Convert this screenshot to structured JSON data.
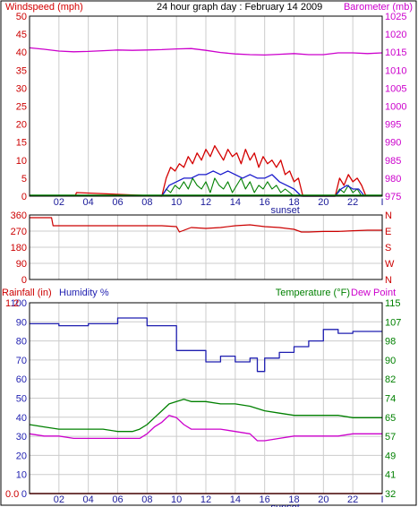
{
  "colors": {
    "wind": "#d40000",
    "gust": "#d40000",
    "avg_wind": "#1a1acc",
    "gust_bars": "#008000",
    "baro": "#cc00cc",
    "winddir": "#cc0000",
    "rain": "#cc0000",
    "humidity": "#1f1fb0",
    "temp": "#008000",
    "dewpoint": "#cc00cc",
    "grid": "#cccccc"
  },
  "chart_data": [
    {
      "type": "line",
      "name_key": "wind_baro",
      "title": "24 hour graph day : February 14 2009",
      "left_axis_label": "Windspeed (mph)",
      "right_axis_label": "Barometer (mb)",
      "left_ticks": [
        "0",
        "5",
        "10",
        "15",
        "20",
        "25",
        "30",
        "35",
        "40",
        "45",
        "50"
      ],
      "right_ticks": [
        "975",
        "980",
        "985",
        "990",
        "995",
        "1000",
        "1005",
        "1010",
        "1015",
        "1020",
        "1025"
      ],
      "x_ticks": [
        "02",
        "04",
        "06",
        "08",
        "10",
        "12",
        "14",
        "16",
        "18",
        "20",
        "22",
        "I"
      ],
      "sunset_label": "sunset",
      "ylim_left": [
        0,
        50
      ],
      "ylim_right": [
        975,
        1025
      ],
      "barometer": {
        "x": [
          0,
          1,
          2,
          3,
          4,
          5,
          6,
          7,
          8,
          9,
          10,
          11,
          12,
          13,
          14,
          15,
          16,
          17,
          18,
          19,
          20,
          21,
          22,
          23,
          24
        ],
        "values": [
          1016.2,
          1015.8,
          1015.3,
          1015.1,
          1015.2,
          1015.4,
          1015.6,
          1015.5,
          1015.6,
          1015.7,
          1015.9,
          1016.0,
          1015.5,
          1014.9,
          1014.5,
          1014.3,
          1014.2,
          1014.4,
          1014.6,
          1014.3,
          1014.3,
          1014.8,
          1014.8,
          1014.6,
          1014.8
        ]
      },
      "wind_gust": {
        "x": [
          3.1,
          3.2,
          9.0,
          9.3,
          9.6,
          9.9,
          10.2,
          10.5,
          10.8,
          11.1,
          11.4,
          11.7,
          12.0,
          12.3,
          12.6,
          12.9,
          13.2,
          13.5,
          13.8,
          14.1,
          14.4,
          14.7,
          15.0,
          15.3,
          15.6,
          15.9,
          16.2,
          16.5,
          16.8,
          17.1,
          17.4,
          17.7,
          18.0,
          18.3,
          18.6,
          20.8,
          21.1,
          21.4,
          21.7,
          22.0,
          22.3,
          22.6,
          22.9
        ],
        "values": [
          0,
          1,
          0,
          5,
          8,
          7,
          9,
          8,
          11,
          9,
          12,
          10,
          13,
          11,
          14,
          12,
          10,
          13,
          11,
          12,
          9,
          13,
          10,
          12,
          8,
          11,
          9,
          10,
          8,
          10,
          6,
          7,
          4,
          5,
          0,
          0,
          5,
          3,
          6,
          4,
          5,
          3,
          0
        ]
      },
      "wind_avg": {
        "x": [
          9.0,
          9.5,
          10.0,
          10.5,
          11.0,
          11.5,
          12.0,
          12.5,
          13.0,
          13.5,
          14.0,
          14.5,
          15.0,
          15.5,
          16.0,
          16.5,
          17.0,
          17.5,
          18.0,
          18.5,
          20.8,
          21.2,
          21.6,
          22.0,
          22.4,
          22.8
        ],
        "values": [
          0,
          3,
          4,
          5,
          5,
          6,
          6,
          7,
          6,
          7,
          6,
          5,
          6,
          5,
          5,
          6,
          4,
          3,
          2,
          0,
          0,
          2,
          3,
          2,
          2,
          0
        ]
      },
      "wind_speed": {
        "x": [
          9.0,
          9.3,
          9.6,
          9.9,
          10.2,
          10.5,
          10.8,
          11.1,
          11.4,
          11.7,
          12.0,
          12.3,
          12.6,
          12.9,
          13.2,
          13.5,
          13.8,
          14.1,
          14.4,
          14.7,
          15.0,
          15.3,
          15.6,
          15.9,
          16.2,
          16.5,
          16.8,
          17.1,
          17.4,
          17.7,
          18.0,
          20.8,
          21.1,
          21.4,
          21.7,
          22.0,
          22.3,
          22.6
        ],
        "values": [
          0,
          2,
          1,
          3,
          2,
          4,
          2,
          5,
          3,
          2,
          4,
          1,
          5,
          3,
          2,
          4,
          1,
          3,
          5,
          2,
          4,
          1,
          3,
          2,
          4,
          2,
          3,
          1,
          2,
          1,
          0,
          0,
          2,
          1,
          3,
          1,
          2,
          0
        ]
      }
    },
    {
      "type": "line",
      "name_key": "wind_dir",
      "left_ticks": [
        "0",
        "90",
        "180",
        "270",
        "360"
      ],
      "right_ticks": [
        "N",
        "W",
        "S",
        "E",
        "N"
      ],
      "ylim": [
        0,
        360
      ],
      "x": [
        0,
        1.5,
        1.6,
        2,
        4,
        6,
        8,
        9,
        10,
        10.2,
        11,
        12,
        13,
        14,
        15,
        16,
        17,
        18,
        18.5,
        19,
        20,
        21,
        22,
        23,
        24
      ],
      "values": [
        345,
        345,
        300,
        300,
        300,
        300,
        300,
        300,
        295,
        265,
        290,
        285,
        290,
        300,
        305,
        295,
        290,
        280,
        265,
        265,
        268,
        268,
        272,
        275,
        275
      ]
    },
    {
      "type": "line",
      "name_key": "temp_hum",
      "left_axis_label_rain": "Rainfall (in)",
      "left_axis_label_hum": "Humidity %",
      "right_axis_label_temp": "Temperature (°F)",
      "right_axis_label_dew": "Dew Point",
      "humidity_ticks": [
        "0",
        "10",
        "20",
        "30",
        "40",
        "50",
        "60",
        "70",
        "80",
        "90",
        "100"
      ],
      "rain_ticks": [
        "0.0",
        "0.1",
        "0.2",
        "0.3",
        "0.4",
        "0.5",
        "0.6",
        "0.7",
        "0.8",
        "0.9",
        "1.0",
        "1.1",
        "1.2"
      ],
      "rain_tick_labels_shown": [
        "0.0",
        "1.2"
      ],
      "right_ticks": [
        "32",
        "41",
        "49",
        "57",
        "65",
        "74",
        "82",
        "90",
        "98",
        "107",
        "115"
      ],
      "x_ticks": [
        "02",
        "04",
        "06",
        "08",
        "10",
        "12",
        "14",
        "16",
        "18",
        "20",
        "22",
        "I"
      ],
      "sunset_label": "sunset",
      "ylim_humidity": [
        0,
        100
      ],
      "ylim_temp": [
        32,
        115
      ],
      "humidity": {
        "x": [
          0,
          2,
          2.0,
          4,
          4.0,
          6,
          6.0,
          8,
          8.0,
          10,
          10.0,
          12,
          12.0,
          13,
          13.0,
          14,
          14.0,
          15,
          15.0,
          15.5,
          15.5,
          16,
          16.0,
          17,
          17.0,
          18,
          18.0,
          19,
          19.0,
          20,
          20.0,
          21,
          21.0,
          22,
          22.0,
          24
        ],
        "values": [
          89,
          89,
          88,
          88,
          89,
          89,
          92,
          92,
          88,
          88,
          75,
          75,
          69,
          69,
          72,
          72,
          69,
          69,
          71,
          71,
          64,
          64,
          71,
          71,
          74,
          74,
          77,
          77,
          80,
          80,
          86,
          86,
          84,
          84,
          85,
          85
        ]
      },
      "temperature": {
        "x": [
          0,
          1,
          2,
          3,
          4,
          5,
          6,
          7,
          7.5,
          8,
          8.5,
          9,
          9.5,
          10,
          10.5,
          11,
          12,
          13,
          14,
          15,
          16,
          17,
          18,
          19,
          20,
          21,
          22,
          23,
          24
        ],
        "values": [
          62,
          61,
          60,
          60,
          60,
          60,
          59,
          59,
          60,
          62,
          65,
          68,
          71,
          72,
          73,
          72,
          72,
          71,
          71,
          70,
          68,
          67,
          66,
          66,
          66,
          66,
          65,
          65,
          65
        ]
      },
      "dewpoint": {
        "x": [
          0,
          1,
          2,
          3,
          4,
          5,
          6,
          7,
          7.5,
          8,
          8.5,
          9,
          9.5,
          10,
          10.5,
          11,
          12,
          13,
          14,
          15,
          15.5,
          16,
          17,
          18,
          19,
          20,
          21,
          22,
          23,
          24
        ],
        "values": [
          58,
          57,
          57,
          56,
          56,
          56,
          56,
          56,
          56,
          58,
          61,
          63,
          66,
          65,
          62,
          60,
          60,
          60,
          59,
          58,
          55,
          55,
          56,
          57,
          57,
          57,
          57,
          58,
          58,
          58
        ]
      },
      "rainfall": {
        "x": [
          0,
          24
        ],
        "values": [
          0.0,
          0.0
        ]
      }
    }
  ]
}
